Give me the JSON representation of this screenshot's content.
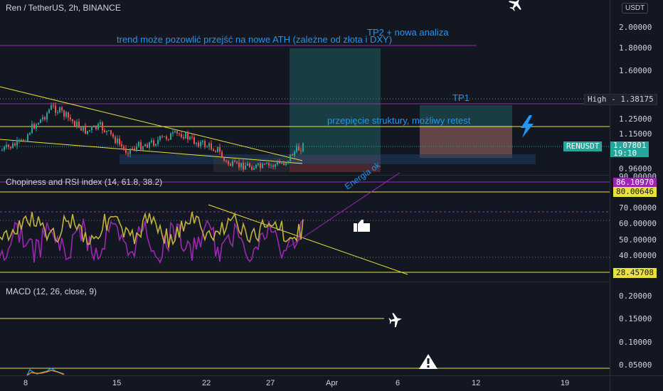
{
  "symbol_title": "Ren / TetherUS, 2h, BINANCE",
  "currency_button": "USDT",
  "annotations": {
    "tp2_line1": "TP2 + nowa analiza",
    "tp2_line2": "trend może pozowlić przejść na nowe ATH (zależne od złota i DXY)",
    "tp1": "TP1",
    "retest": "przepięcie struktury, możliwy retest",
    "energia": "Energia ok"
  },
  "price_axis": {
    "ticks": [
      "2.00000",
      "1.80000",
      "1.60000",
      "1.38175",
      "1.25000",
      "1.15000",
      "1.07801",
      "0.96000",
      "90.00000"
    ],
    "high_label": "High",
    "high_value": "1.38175",
    "symbol_tag": "RENUSDT",
    "last_price": "1.07801",
    "countdown": "19:10"
  },
  "indicator_rsi": {
    "title": "Chopiness and RSI index (14, 61.8, 38.2)",
    "ticks": [
      "86.10970",
      "80.00646",
      "70.00000",
      "60.00000",
      "50.00000",
      "40.00000",
      "28.45708"
    ]
  },
  "indicator_macd": {
    "title": "MACD (12, 26, close, 9)",
    "ticks": [
      "0.20000",
      "0.15000",
      "0.10000",
      "0.05000"
    ]
  },
  "time_axis": [
    "8",
    "15",
    "22",
    "27",
    "Apr",
    "6",
    "12",
    "19"
  ],
  "colors": {
    "background": "#131722",
    "candle_up": "#26a69a",
    "candle_down": "#ef5350",
    "rsi": "#c0b23a",
    "chop": "#9c27b0",
    "trendline": "#e8e23a",
    "accent_blue": "#2196f3"
  },
  "icons": [
    "airplane-icon",
    "airplane-icon",
    "thumbs-up-icon",
    "warning-icon",
    "lightning-icon"
  ]
}
